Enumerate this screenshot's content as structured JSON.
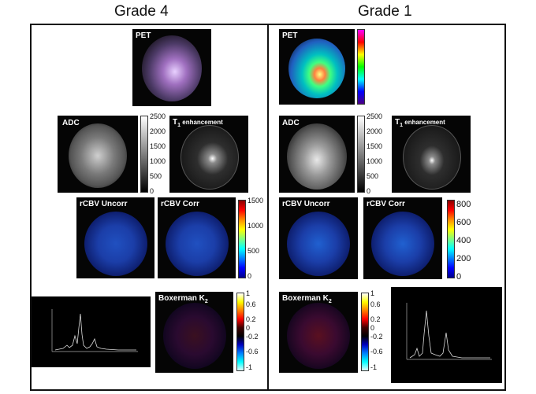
{
  "grade4": {
    "title": "Grade 4",
    "pet": "PET",
    "adc": "ADC",
    "t1_label": "T",
    "t1_sub": "1",
    "t1_rest": " enhancement",
    "rcbv_uncorr": "rCBV Uncorr",
    "rcbv_corr": "rCBV Corr",
    "boxerman": "Boxerman K",
    "boxerman_sub": "2",
    "adc_ticks": [
      "2500",
      "2000",
      "1500",
      "1000",
      "500",
      "0"
    ],
    "rcbv_ticks": [
      "1500",
      "1000",
      "500",
      "0"
    ],
    "k2_ticks": [
      "1",
      "0.6",
      "0.2",
      "0",
      "-0.2",
      "-0.6",
      "-1"
    ]
  },
  "grade1": {
    "title": "Grade 1",
    "pet": "PET",
    "adc": "ADC",
    "t1_label": "T",
    "t1_sub": "1",
    "t1_rest": " enhancement",
    "rcbv_uncorr": "rCBV Uncorr",
    "rcbv_corr": "rCBV Corr",
    "boxerman": "Boxerman K",
    "boxerman_sub": "2",
    "adc_ticks": [
      "2500",
      "2000",
      "1500",
      "1000",
      "500",
      "0"
    ],
    "rcbv_ticks": [
      "800",
      "600",
      "400",
      "200",
      "0"
    ],
    "k2_ticks": [
      "1",
      "0.6",
      "0.2",
      "0",
      "-0.2",
      "-0.6",
      "-1"
    ]
  },
  "colors": {
    "jet": "linear-gradient(to bottom,#8b0000,#ff0000,#ff8c00,#ffff00,#7fff7f,#00ffff,#0080ff,#0000ff,#00008b)",
    "gray": "linear-gradient(to bottom,#ffffff,#000000)",
    "k2": "linear-gradient(to bottom,#ffffff,#ffff00,#ff8000,#ff0000,#400000,#000000,#0000c0,#0080ff,#00ffff,#e0ffff)",
    "pet": "linear-gradient(to bottom,#ff00ff,#ff0000,#ffff00,#00ff00,#00ffff,#0000ff,#4b0082)"
  }
}
